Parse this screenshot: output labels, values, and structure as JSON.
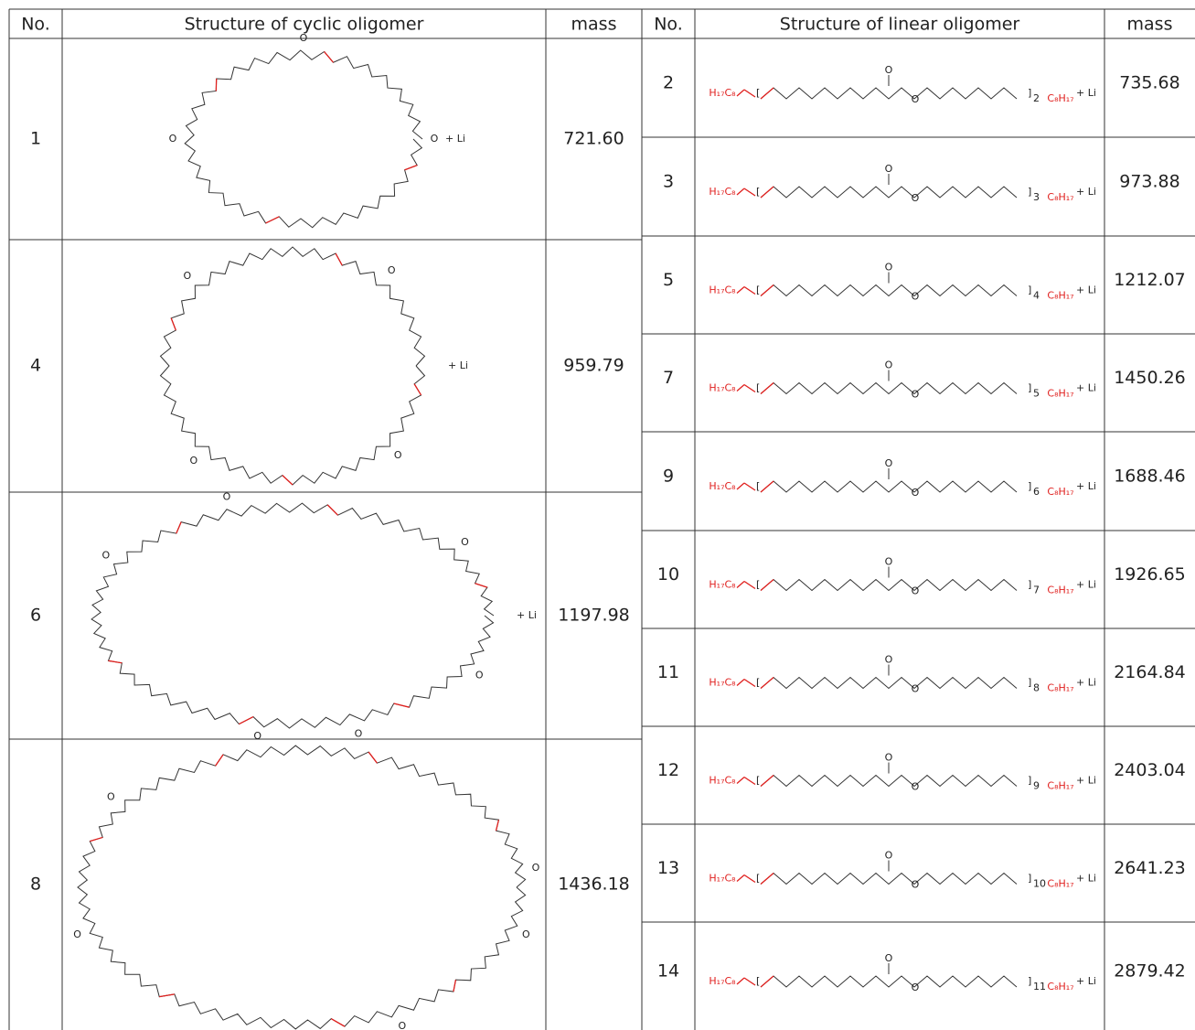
{
  "left": {
    "headers": [
      "No.",
      "Structure of cyclic oligomer",
      "mass"
    ],
    "rows": [
      {
        "no": "1",
        "adduct": "+ Li",
        "mass": "721.60"
      },
      {
        "no": "4",
        "adduct": "+ Li",
        "mass": "959.79"
      },
      {
        "no": "6",
        "adduct": "+ Li",
        "mass": "1197.98"
      },
      {
        "no": "8",
        "mass": "1436.18"
      }
    ]
  },
  "oxygen": "O",
  "right": {
    "headers": [
      "No.",
      "Structure of linear oligomer",
      "mass"
    ],
    "end_left": "H₁₇C₈",
    "end_right": "C₈H₁₇",
    "adduct": "+ Li",
    "rows": [
      {
        "no": "2",
        "repeat": "2",
        "mass": "735.68"
      },
      {
        "no": "3",
        "repeat": "3",
        "mass": "973.88"
      },
      {
        "no": "5",
        "repeat": "4",
        "mass": "1212.07"
      },
      {
        "no": "7",
        "repeat": "5",
        "mass": "1450.26"
      },
      {
        "no": "9",
        "repeat": "6",
        "mass": "1688.46"
      },
      {
        "no": "10",
        "repeat": "7",
        "mass": "1926.65"
      },
      {
        "no": "11",
        "repeat": "8",
        "mass": "2164.84"
      },
      {
        "no": "12",
        "repeat": "9",
        "mass": "2403.04"
      },
      {
        "no": "13",
        "repeat": "10",
        "mass": "2641.23"
      },
      {
        "no": "14",
        "repeat": "11",
        "mass": "2879.42"
      }
    ]
  }
}
